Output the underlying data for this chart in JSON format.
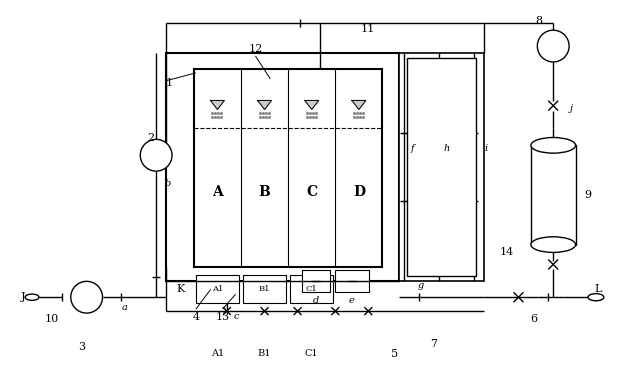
{
  "bg_color": "#ffffff",
  "line_color": "#000000",
  "fig_width": 6.22,
  "fig_height": 3.81,
  "dpi": 100,
  "chambers": [
    "A",
    "B",
    "C",
    "D"
  ]
}
